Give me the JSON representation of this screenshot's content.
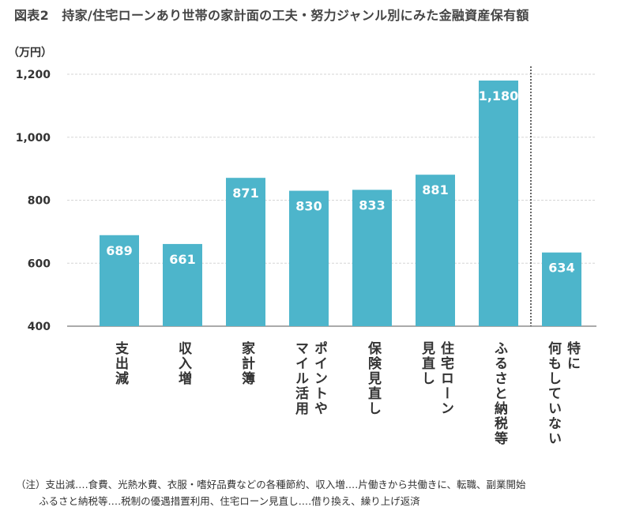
{
  "title": "図表2　持家/住宅ローンあり世帯の家計面の工夫・努力ジャンル別にみた金融資産保有額",
  "chart_data": {
    "type": "bar",
    "title": "図表2　持家/住宅ローンあり世帯の家計面の工夫・努力ジャンル別にみた金融資産保有額",
    "ylabel": "（万円）",
    "xlabel": "",
    "ylim": [
      400,
      1200
    ],
    "yticks": [
      400,
      600,
      800,
      1000,
      1200
    ],
    "ytick_labels": [
      "400",
      "600",
      "800",
      "1,000",
      "1,200"
    ],
    "grid": true,
    "categories": [
      "支出減",
      "収入増",
      "家計簿",
      "ポイントや\nマイル活用",
      "保険見直し",
      "住宅ローン\n見直し",
      "ふるさと納税等",
      "特に\n何もしていない"
    ],
    "values": [
      689,
      661,
      871,
      830,
      833,
      881,
      1180,
      634
    ],
    "data_labels": [
      "689",
      "661",
      "871",
      "830",
      "833",
      "881",
      "1,180",
      "634"
    ],
    "bar_color": "#4db5cb",
    "separator_before_last": true
  },
  "notes": [
    "（注）支出減‥‥食費、光熱水費、衣服・嗜好品費などの各種節約、収入増‥‥片働きから共働きに、転職、副業開始",
    "ふるさと納税等‥‥税制の優遇措置利用、住宅ローン見直し‥‥借り換え、繰り上げ返済"
  ]
}
